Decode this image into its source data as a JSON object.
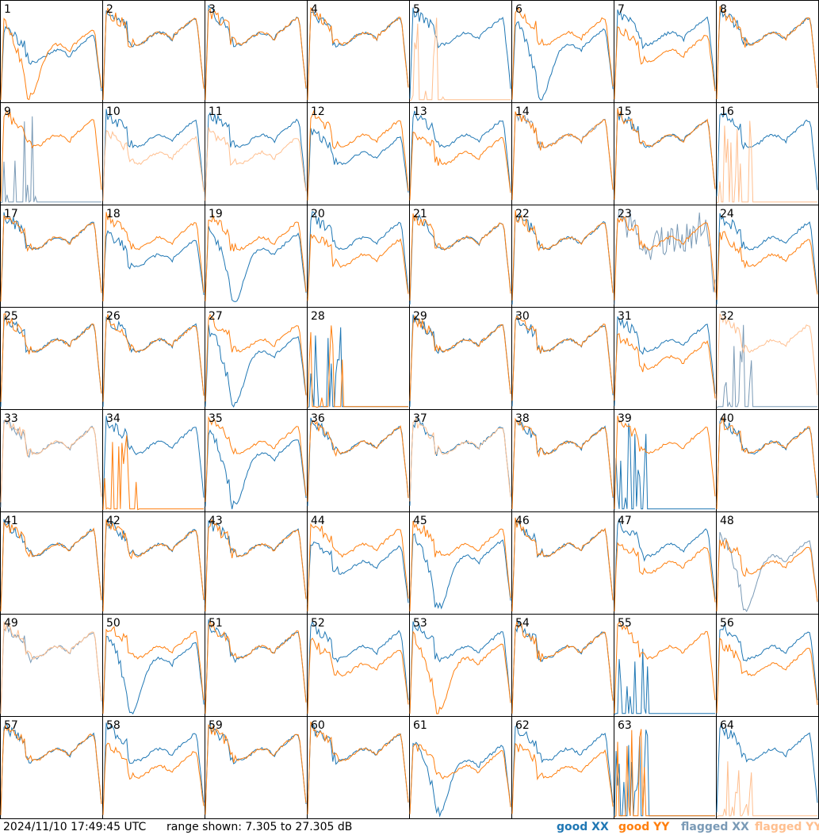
{
  "footer": {
    "timestamp": "2024/11/10 17:49:45 UTC",
    "range_text": "range shown: 7.305 to 27.305 dB"
  },
  "legend": {
    "good_xx": "good XX",
    "good_yy": "good YY",
    "flagged_xx": "flagged XX",
    "flagged_yy": "flagged YY"
  },
  "colors": {
    "good_xx": "#1f77b4",
    "good_yy": "#ff7f0e",
    "flagged_xx": "#7a9ab6",
    "flagged_yy": "#ffbf8f"
  },
  "chart_data": {
    "type": "line",
    "grid": "8x8 small multiples, one panel per tile",
    "ylim": [
      7.305,
      27.305
    ],
    "ylabel_units": "dB",
    "tiles": [
      {
        "n": 1,
        "xx": "good",
        "yy": "good",
        "xx_shape": "low",
        "yy_shape": "dip"
      },
      {
        "n": 2,
        "xx": "good",
        "yy": "good",
        "xx_shape": "normal",
        "yy_shape": "normal"
      },
      {
        "n": 3,
        "xx": "good",
        "yy": "good",
        "xx_shape": "normal",
        "yy_shape": "normal"
      },
      {
        "n": 4,
        "xx": "good",
        "yy": "good",
        "xx_shape": "normal",
        "yy_shape": "normal"
      },
      {
        "n": 5,
        "xx": "good",
        "yy": "flagged",
        "xx_shape": "normal",
        "yy_shape": "dead"
      },
      {
        "n": 6,
        "xx": "good",
        "yy": "good",
        "xx_shape": "dip",
        "yy_shape": "normal"
      },
      {
        "n": 7,
        "xx": "good",
        "yy": "good",
        "xx_shape": "normal",
        "yy_shape": "low"
      },
      {
        "n": 8,
        "xx": "good",
        "yy": "good",
        "xx_shape": "normal",
        "yy_shape": "normal"
      },
      {
        "n": 9,
        "xx": "flagged",
        "yy": "good",
        "xx_shape": "dead",
        "yy_shape": "normal"
      },
      {
        "n": 10,
        "xx": "good",
        "yy": "flagged",
        "xx_shape": "normal",
        "yy_shape": "low"
      },
      {
        "n": 11,
        "xx": "good",
        "yy": "flagged",
        "xx_shape": "normal",
        "yy_shape": "low"
      },
      {
        "n": 12,
        "xx": "good",
        "yy": "good",
        "xx_shape": "low",
        "yy_shape": "normal"
      },
      {
        "n": 13,
        "xx": "good",
        "yy": "good",
        "xx_shape": "normal",
        "yy_shape": "low"
      },
      {
        "n": 14,
        "xx": "flagged",
        "yy": "good",
        "xx_shape": "normal",
        "yy_shape": "normal"
      },
      {
        "n": 15,
        "xx": "good",
        "yy": "good",
        "xx_shape": "normal",
        "yy_shape": "normal"
      },
      {
        "n": 16,
        "xx": "good",
        "yy": "flagged",
        "xx_shape": "normal",
        "yy_shape": "dead"
      },
      {
        "n": 17,
        "xx": "good",
        "yy": "good",
        "xx_shape": "normal",
        "yy_shape": "normal"
      },
      {
        "n": 18,
        "xx": "good",
        "yy": "good",
        "xx_shape": "low",
        "yy_shape": "normal"
      },
      {
        "n": 19,
        "xx": "good",
        "yy": "good",
        "xx_shape": "dip",
        "yy_shape": "normal"
      },
      {
        "n": 20,
        "xx": "good",
        "yy": "good",
        "xx_shape": "normal",
        "yy_shape": "low"
      },
      {
        "n": 21,
        "xx": "good",
        "yy": "good",
        "xx_shape": "normal",
        "yy_shape": "normal"
      },
      {
        "n": 22,
        "xx": "good",
        "yy": "good",
        "xx_shape": "normal",
        "yy_shape": "normal"
      },
      {
        "n": 23,
        "xx": "flagged",
        "yy": "good",
        "xx_shape": "noisy",
        "yy_shape": "normal"
      },
      {
        "n": 24,
        "xx": "good",
        "yy": "good",
        "xx_shape": "normal",
        "yy_shape": "low"
      },
      {
        "n": 25,
        "xx": "good",
        "yy": "good",
        "xx_shape": "normal",
        "yy_shape": "normal"
      },
      {
        "n": 26,
        "xx": "good",
        "yy": "good",
        "xx_shape": "normal",
        "yy_shape": "normal"
      },
      {
        "n": 27,
        "xx": "good",
        "yy": "good",
        "xx_shape": "dip",
        "yy_shape": "normal"
      },
      {
        "n": 28,
        "xx": "good",
        "yy": "good",
        "xx_shape": "dead",
        "yy_shape": "dead"
      },
      {
        "n": 29,
        "xx": "good",
        "yy": "good",
        "xx_shape": "normal",
        "yy_shape": "normal"
      },
      {
        "n": 30,
        "xx": "good",
        "yy": "good",
        "xx_shape": "normal",
        "yy_shape": "normal"
      },
      {
        "n": 31,
        "xx": "good",
        "yy": "good",
        "xx_shape": "normal",
        "yy_shape": "low"
      },
      {
        "n": 32,
        "xx": "flagged",
        "yy": "flagged",
        "xx_shape": "dead",
        "yy_shape": "normal"
      },
      {
        "n": 33,
        "xx": "flagged",
        "yy": "flagged",
        "xx_shape": "normal",
        "yy_shape": "normal"
      },
      {
        "n": 34,
        "xx": "good",
        "yy": "good",
        "xx_shape": "normal",
        "yy_shape": "dead"
      },
      {
        "n": 35,
        "xx": "good",
        "yy": "good",
        "xx_shape": "dip",
        "yy_shape": "normal"
      },
      {
        "n": 36,
        "xx": "good",
        "yy": "good",
        "xx_shape": "normal",
        "yy_shape": "normal"
      },
      {
        "n": 37,
        "xx": "good",
        "yy": "flagged",
        "xx_shape": "normal",
        "yy_shape": "normal"
      },
      {
        "n": 38,
        "xx": "good",
        "yy": "good",
        "xx_shape": "normal",
        "yy_shape": "normal"
      },
      {
        "n": 39,
        "xx": "good",
        "yy": "good",
        "xx_shape": "dead",
        "yy_shape": "normal"
      },
      {
        "n": 40,
        "xx": "good",
        "yy": "good",
        "xx_shape": "normal",
        "yy_shape": "normal"
      },
      {
        "n": 41,
        "xx": "good",
        "yy": "good",
        "xx_shape": "normal",
        "yy_shape": "normal"
      },
      {
        "n": 42,
        "xx": "good",
        "yy": "good",
        "xx_shape": "normal",
        "yy_shape": "normal"
      },
      {
        "n": 43,
        "xx": "good",
        "yy": "good",
        "xx_shape": "normal",
        "yy_shape": "normal"
      },
      {
        "n": 44,
        "xx": "good",
        "yy": "good",
        "xx_shape": "low",
        "yy_shape": "normal"
      },
      {
        "n": 45,
        "xx": "good",
        "yy": "good",
        "xx_shape": "dip",
        "yy_shape": "normal"
      },
      {
        "n": 46,
        "xx": "good",
        "yy": "good",
        "xx_shape": "normal",
        "yy_shape": "normal"
      },
      {
        "n": 47,
        "xx": "good",
        "yy": "good",
        "xx_shape": "normal",
        "yy_shape": "low"
      },
      {
        "n": 48,
        "xx": "flagged",
        "yy": "good",
        "xx_shape": "dip",
        "yy_shape": "low"
      },
      {
        "n": 49,
        "xx": "flagged",
        "yy": "flagged",
        "xx_shape": "normal",
        "yy_shape": "normal"
      },
      {
        "n": 50,
        "xx": "good",
        "yy": "good",
        "xx_shape": "dip",
        "yy_shape": "normal"
      },
      {
        "n": 51,
        "xx": "good",
        "yy": "good",
        "xx_shape": "normal",
        "yy_shape": "normal"
      },
      {
        "n": 52,
        "xx": "good",
        "yy": "good",
        "xx_shape": "normal",
        "yy_shape": "low"
      },
      {
        "n": 53,
        "xx": "good",
        "yy": "good",
        "xx_shape": "normal",
        "yy_shape": "dip"
      },
      {
        "n": 54,
        "xx": "good",
        "yy": "good",
        "xx_shape": "normal",
        "yy_shape": "normal"
      },
      {
        "n": 55,
        "xx": "good",
        "yy": "good",
        "xx_shape": "dead",
        "yy_shape": "normal"
      },
      {
        "n": 56,
        "xx": "good",
        "yy": "good",
        "xx_shape": "normal",
        "yy_shape": "low"
      },
      {
        "n": 57,
        "xx": "good",
        "yy": "good",
        "xx_shape": "normal",
        "yy_shape": "normal"
      },
      {
        "n": 58,
        "xx": "good",
        "yy": "good",
        "xx_shape": "normal",
        "yy_shape": "low"
      },
      {
        "n": 59,
        "xx": "good",
        "yy": "good",
        "xx_shape": "normal",
        "yy_shape": "normal"
      },
      {
        "n": 60,
        "xx": "good",
        "yy": "good",
        "xx_shape": "normal",
        "yy_shape": "normal"
      },
      {
        "n": 61,
        "xx": "good",
        "yy": "good",
        "xx_shape": "dip",
        "yy_shape": "low"
      },
      {
        "n": 62,
        "xx": "good",
        "yy": "good",
        "xx_shape": "normal",
        "yy_shape": "low"
      },
      {
        "n": 63,
        "xx": "good",
        "yy": "good",
        "xx_shape": "dead",
        "yy_shape": "dead"
      },
      {
        "n": 64,
        "xx": "good",
        "yy": "flagged",
        "xx_shape": "normal",
        "yy_shape": "dead"
      }
    ]
  }
}
